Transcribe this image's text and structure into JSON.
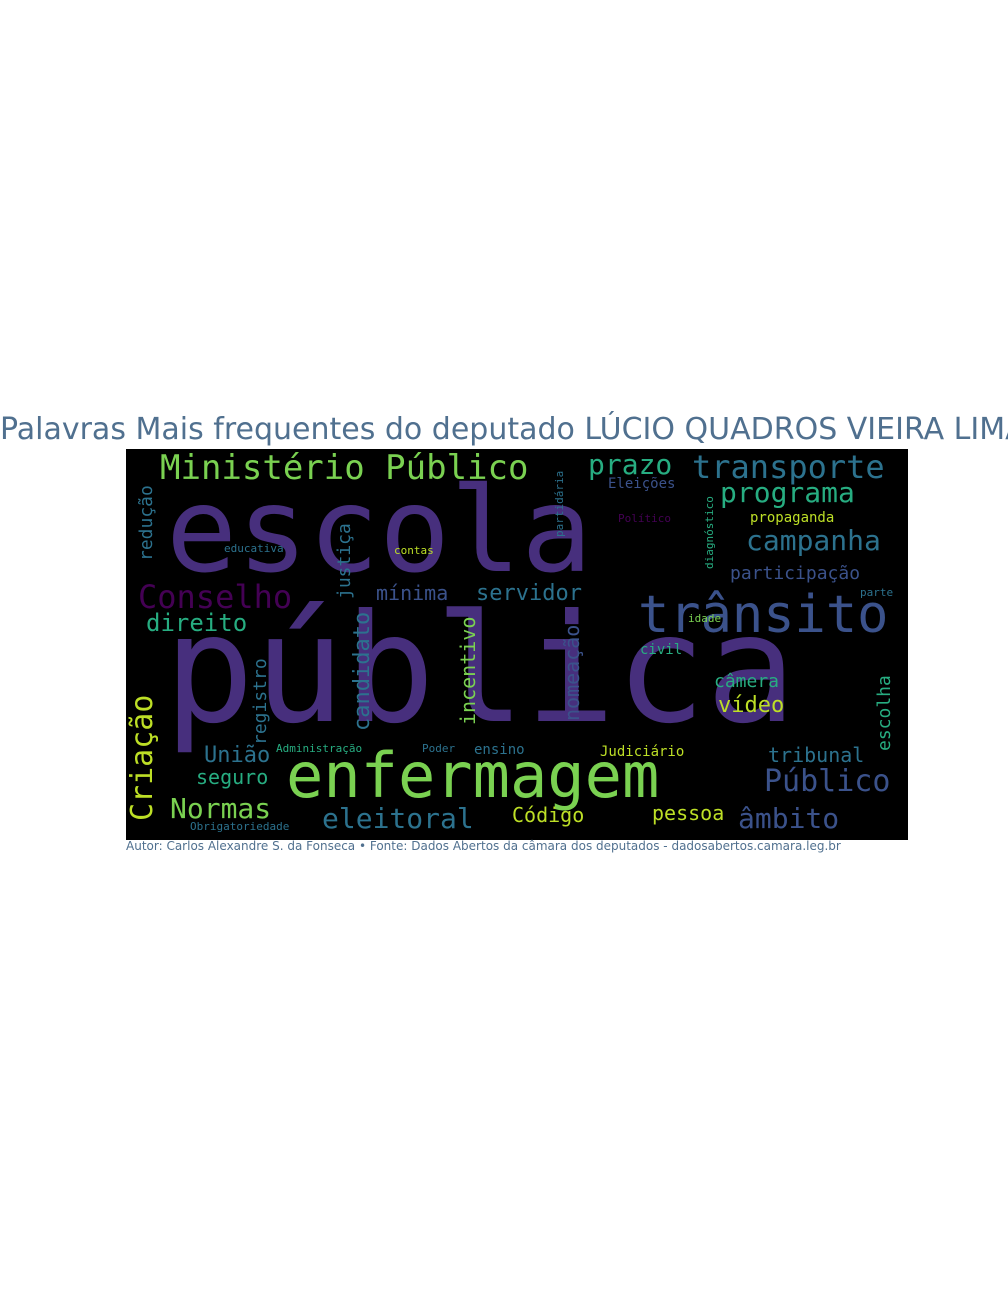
{
  "title": "Palavras Mais frequentes do deputado LÚCIO QUADROS VIEIRA LIMA",
  "caption": "Autor: Carlos Alexandre S. da Fonseca • Fonte: Dados Abertos da câmara dos deputados - dadosabertos.camara.leg.br",
  "colors": {
    "background": "#000000",
    "title": "#50708f",
    "purple": "#472f7d",
    "blue": "#3b528b",
    "teal": "#2c728e",
    "green": "#27ad81",
    "lime": "#7ad151",
    "yellow": "#bddf26",
    "violet": "#440154"
  },
  "words": [
    "escola",
    "pública",
    "enfermagem",
    "trânsito",
    "Ministério Público",
    "transporte",
    "programa",
    "campanha",
    "Conselho",
    "Criação",
    "prazo",
    "Público",
    "Normas",
    "eleitoral",
    "âmbito",
    "direito",
    "servidor",
    "mínima",
    "participação",
    "tribunal",
    "União",
    "seguro",
    "câmera",
    "vídeo",
    "Código",
    "pessoa",
    "candidato",
    "incentivo",
    "nomeação",
    "registro",
    "justiça",
    "redução",
    "propaganda",
    "escolha",
    "civil",
    "Eleições",
    "educativa",
    "contas",
    "ensino",
    "Judiciário",
    "Administração",
    "Poder",
    "Obrigatoriedade",
    "parte",
    "idade",
    "partidária",
    "Político",
    "diagnóstico"
  ]
}
